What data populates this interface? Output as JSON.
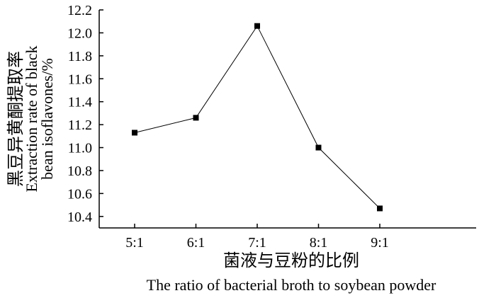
{
  "chart_data": {
    "type": "line",
    "categories": [
      "5:1",
      "6:1",
      "7:1",
      "8:1",
      "9:1"
    ],
    "series": [
      {
        "values": [
          11.13,
          11.26,
          12.06,
          11.0,
          10.47
        ]
      }
    ],
    "ylim": [
      10.3,
      12.2
    ],
    "yticks": [
      "10.4",
      "10.6",
      "10.8",
      "11.0",
      "11.2",
      "11.4",
      "11.6",
      "11.8",
      "12.0",
      "12.2"
    ],
    "xlabel_cn": "菌液与豆粉的比例",
    "xlabel": "The ratio of bacterial broth to soybean powder",
    "ylabel_cn": "黑豆异黄酮提取率",
    "ylabel_line1": "Extraction rate of black",
    "ylabel_line2": "bean isoflavones/%",
    "grid": false,
    "marker": "square",
    "color": "#000000"
  }
}
